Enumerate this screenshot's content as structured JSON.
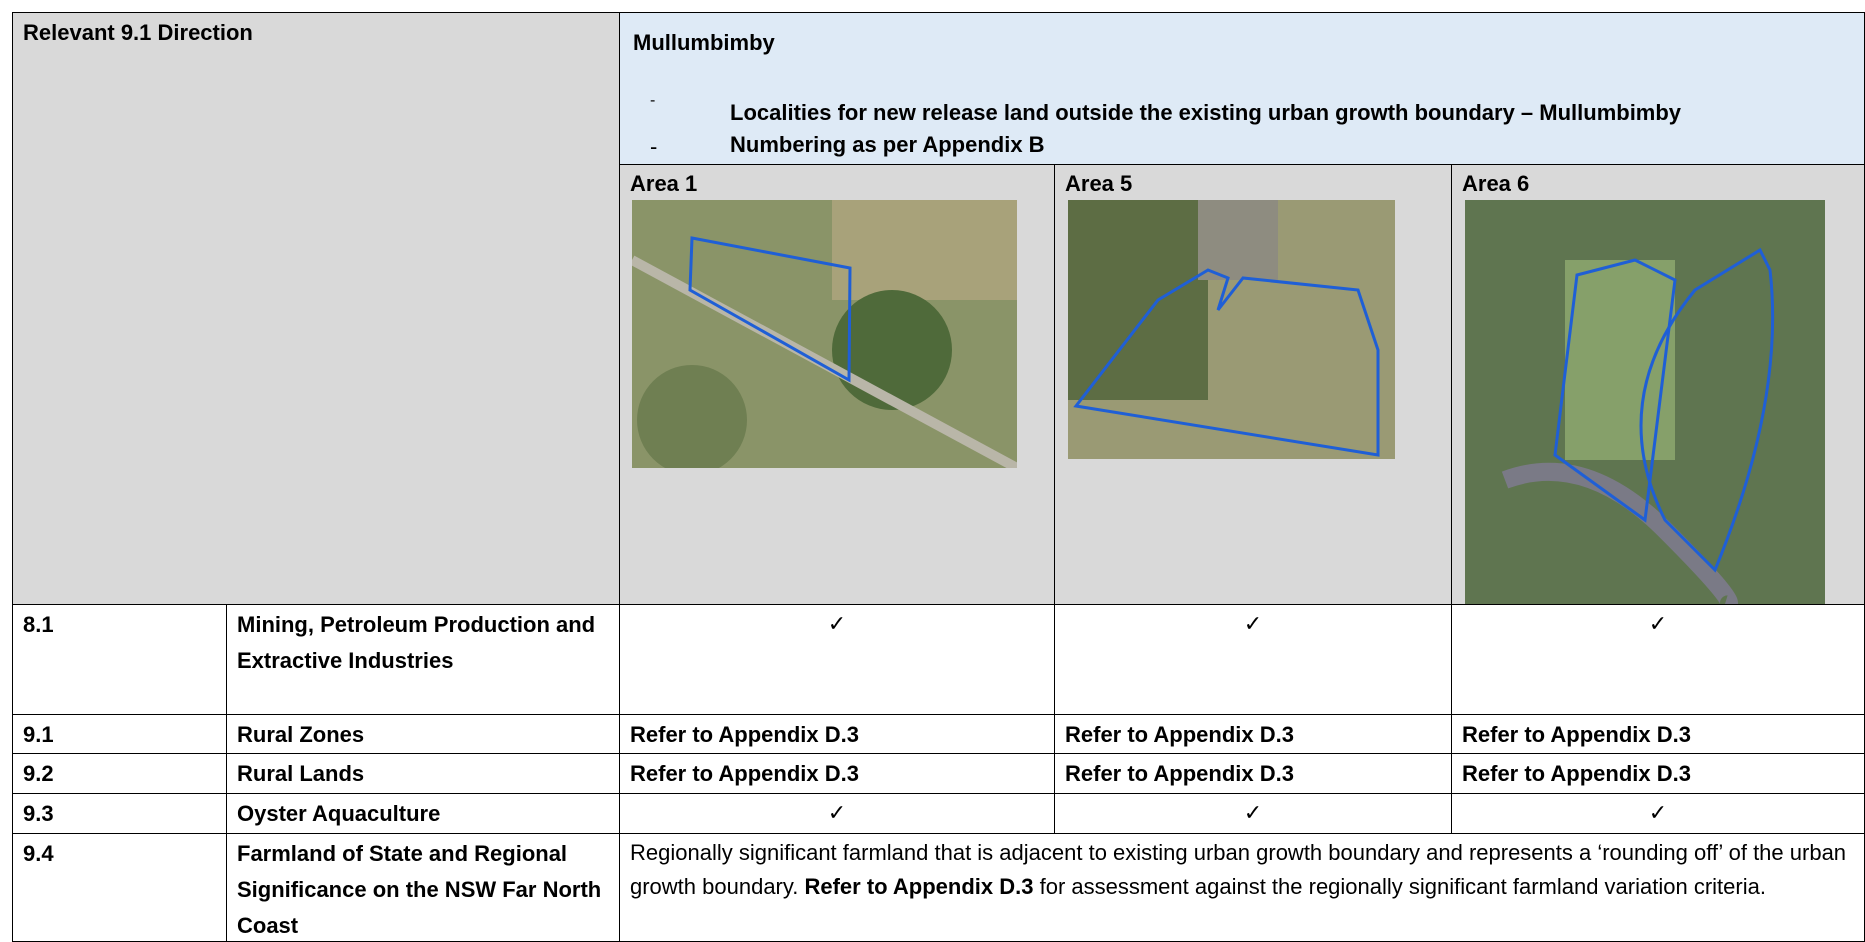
{
  "header": {
    "left": "Relevant 9.1 Direction",
    "title": "Mullumbimby",
    "bullets": [
      {
        "marker": "-",
        "text": "Localities for new release land outside the existing urban growth boundary – Mullumbimby"
      },
      {
        "marker": "-",
        "text": "Numbering as per Appendix B"
      }
    ]
  },
  "areas": [
    "Area 1",
    "Area 5",
    "Area 6"
  ],
  "rows": [
    {
      "code": "8.1",
      "name": "Mining, Petroleum Production and Extractive Industries",
      "cells": [
        "✓",
        "✓",
        "✓"
      ]
    },
    {
      "code": "9.1",
      "name": "Rural Zones",
      "cells": [
        "Refer to Appendix D.3",
        "Refer to Appendix D.3",
        "Refer to Appendix D.3"
      ]
    },
    {
      "code": "9.2",
      "name": "Rural Lands",
      "cells": [
        "Refer to Appendix D.3",
        "Refer to Appendix D.3",
        "Refer to Appendix D.3"
      ]
    },
    {
      "code": "9.3",
      "name": "Oyster Aquaculture",
      "cells": [
        "✓",
        "✓",
        "✓"
      ]
    },
    {
      "code": "9.4",
      "name": "Farmland of State and Regional Significance on the NSW Far North Coast",
      "text": [
        "Regionally significant farmland that is adjacent to existing urban growth boundary and represents a ‘rounding off’ of the urban growth boundary. ",
        "Refer to Appendix D.3",
        " for assessment against the regionally significant farmland variation criteria."
      ]
    }
  ]
}
